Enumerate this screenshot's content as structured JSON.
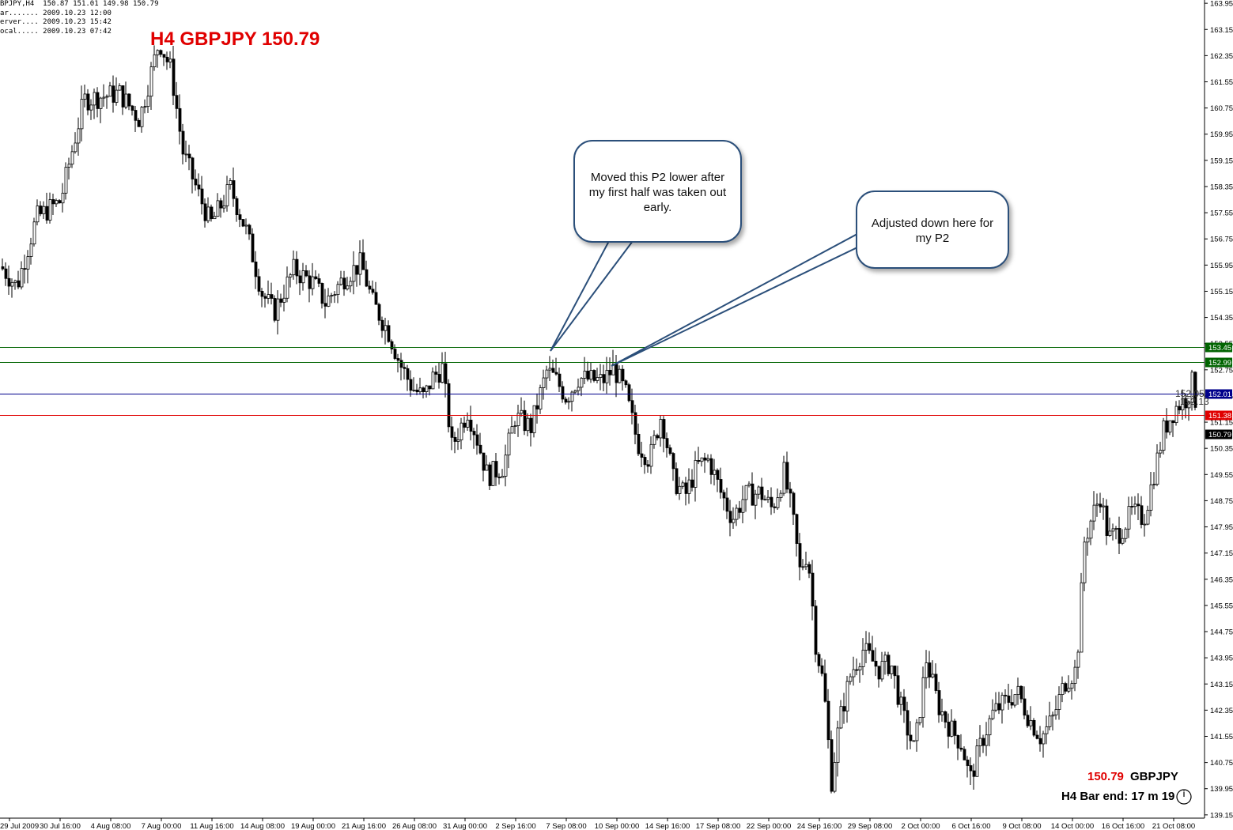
{
  "header": {
    "line1": "BPJPY,H4  150.87 151.01 149.98 150.79",
    "line2": "ar....... 2009.10.23 12:00",
    "line3": "erver.... 2009.10.23 15:42",
    "line4": "ocal..... 2009.10.23 07:42"
  },
  "title": "H4 GBPJPY 150.79",
  "annotations": {
    "bubble1": "Moved this P2 lower after my first half was taken out early.",
    "bubble2": "Adjusted down here for my P2"
  },
  "footer": {
    "price": "150.79",
    "symbol": "GBPJPY",
    "bar_end": "H4 Bar end: 17 m 19 s"
  },
  "colors": {
    "candle": "#000000",
    "green_line": "#006400",
    "blue_line": "#00008b",
    "red_line": "#e00000",
    "title": "#e00000"
  },
  "chart_data": {
    "type": "candlestick",
    "symbol": "GBPJPY",
    "timeframe": "H4",
    "ylim": [
      139.05,
      164.05
    ],
    "y_ticks": [
      "163.95",
      "163.15",
      "162.35",
      "161.55",
      "160.75",
      "159.95",
      "159.15",
      "158.35",
      "157.55",
      "156.75",
      "155.95",
      "155.15",
      "154.35",
      "153.55",
      "152.75",
      "151.95",
      "151.15",
      "150.35",
      "149.55",
      "148.75",
      "147.95",
      "147.15",
      "146.35",
      "145.55",
      "144.75",
      "143.95",
      "143.15",
      "142.35",
      "141.55",
      "140.75",
      "139.95",
      "139.15"
    ],
    "x_ticks": [
      "29 Jul 2009",
      "30 Jul 16:00",
      "4 Aug 08:00",
      "7 Aug 00:00",
      "11 Aug 16:00",
      "14 Aug 08:00",
      "19 Aug 00:00",
      "21 Aug 16:00",
      "26 Aug 08:00",
      "31 Aug 00:00",
      "2 Sep 16:00",
      "7 Sep 08:00",
      "10 Sep 00:00",
      "14 Sep 16:00",
      "17 Sep 08:00",
      "22 Sep 00:00",
      "24 Sep 16:00",
      "29 Sep 08:00",
      "2 Oct 00:00",
      "6 Oct 16:00",
      "9 Oct 08:00",
      "14 Oct 00:00",
      "16 Oct 16:00",
      "21 Oct 08:00"
    ],
    "hlines": [
      {
        "label": "153.45",
        "value": 153.45,
        "color": "green"
      },
      {
        "label": "152.99",
        "value": 152.99,
        "color": "green"
      },
      {
        "label": "152.01",
        "value": 152.01,
        "color": "blue"
      },
      {
        "label": "151.38",
        "value": 151.38,
        "color": "red"
      }
    ],
    "current_price": "150.79",
    "price_overlap_text": [
      "152.05",
      "152.13"
    ],
    "waypoints": [
      [
        0,
        155.9
      ],
      [
        20,
        155.3
      ],
      [
        45,
        157.4
      ],
      [
        75,
        157.9
      ],
      [
        105,
        161.0
      ],
      [
        150,
        161.2
      ],
      [
        175,
        160.4
      ],
      [
        200,
        162.8
      ],
      [
        215,
        161.9
      ],
      [
        230,
        159.4
      ],
      [
        250,
        158.1
      ],
      [
        265,
        157.2
      ],
      [
        290,
        158.3
      ],
      [
        310,
        157.0
      ],
      [
        330,
        155.1
      ],
      [
        345,
        154.5
      ],
      [
        370,
        155.8
      ],
      [
        395,
        155.4
      ],
      [
        410,
        154.8
      ],
      [
        435,
        155.6
      ],
      [
        455,
        156.0
      ],
      [
        470,
        154.8
      ],
      [
        490,
        153.9
      ],
      [
        505,
        152.9
      ],
      [
        520,
        152.2
      ],
      [
        535,
        151.9
      ],
      [
        545,
        152.5
      ],
      [
        558,
        152.8
      ],
      [
        570,
        150.4
      ],
      [
        590,
        151.5
      ],
      [
        600,
        150.8
      ],
      [
        615,
        149.5
      ],
      [
        635,
        149.8
      ],
      [
        650,
        151.3
      ],
      [
        670,
        151.0
      ],
      [
        690,
        152.7
      ],
      [
        700,
        152.5
      ],
      [
        715,
        151.9
      ],
      [
        730,
        152.5
      ],
      [
        760,
        152.4
      ],
      [
        775,
        152.8
      ],
      [
        790,
        152.0
      ],
      [
        805,
        150.5
      ],
      [
        820,
        150.0
      ],
      [
        835,
        151.4
      ],
      [
        850,
        149.4
      ],
      [
        865,
        148.9
      ],
      [
        880,
        149.8
      ],
      [
        895,
        150.0
      ],
      [
        910,
        149.0
      ],
      [
        925,
        148.2
      ],
      [
        940,
        148.9
      ],
      [
        960,
        149.0
      ],
      [
        975,
        148.5
      ],
      [
        990,
        149.6
      ],
      [
        1000,
        148.4
      ],
      [
        1010,
        146.6
      ],
      [
        1020,
        147.2
      ],
      [
        1030,
        144.4
      ],
      [
        1040,
        143.1
      ],
      [
        1050,
        140.2
      ],
      [
        1060,
        142.0
      ],
      [
        1075,
        143.5
      ],
      [
        1090,
        144.2
      ],
      [
        1110,
        143.6
      ],
      [
        1125,
        143.8
      ],
      [
        1140,
        142.2
      ],
      [
        1155,
        141.1
      ],
      [
        1170,
        143.9
      ],
      [
        1185,
        142.5
      ],
      [
        1200,
        141.8
      ],
      [
        1215,
        141.3
      ],
      [
        1225,
        140.2
      ],
      [
        1240,
        141.4
      ],
      [
        1255,
        142.3
      ],
      [
        1270,
        142.6
      ],
      [
        1285,
        142.9
      ],
      [
        1300,
        142.1
      ],
      [
        1315,
        141.5
      ],
      [
        1330,
        142.1
      ],
      [
        1345,
        143.2
      ],
      [
        1360,
        143.6
      ],
      [
        1370,
        147.5
      ],
      [
        1380,
        148.3
      ],
      [
        1390,
        148.9
      ],
      [
        1400,
        147.6
      ],
      [
        1415,
        147.8
      ],
      [
        1430,
        148.4
      ],
      [
        1445,
        148.2
      ],
      [
        1460,
        149.8
      ],
      [
        1470,
        150.9
      ],
      [
        1485,
        151.6
      ],
      [
        1500,
        151.9
      ],
      [
        1508,
        152.5
      ],
      [
        1513,
        150.8
      ]
    ]
  }
}
